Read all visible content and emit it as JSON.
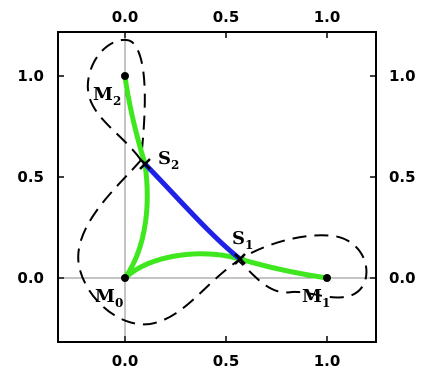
{
  "axes": {
    "x_ticks": [
      "0.0",
      "0.5",
      "1.0"
    ],
    "y_ticks": [
      "1.0",
      "0.5",
      "0.0"
    ],
    "x_range": [
      -0.33,
      1.25
    ],
    "y_range": [
      -0.25,
      1.22
    ]
  },
  "points": {
    "M0": {
      "main": "M",
      "sub": "0",
      "x": 0.0,
      "y": 0.0
    },
    "M1": {
      "main": "M",
      "sub": "1",
      "x": 1.0,
      "y": 0.0
    },
    "M2": {
      "main": "M",
      "sub": "2",
      "x": 0.0,
      "y": 1.0
    },
    "S1": {
      "main": "S",
      "sub": "1",
      "x": 0.57,
      "y": 0.09
    },
    "S2": {
      "main": "S",
      "sub": "2",
      "x": 0.09,
      "y": 0.57
    }
  },
  "colors": {
    "frame": "#000000",
    "axis_line": "#888888",
    "geodesic": "#3fe81e",
    "segment": "#1f22e6",
    "boundary": "#000000"
  }
}
